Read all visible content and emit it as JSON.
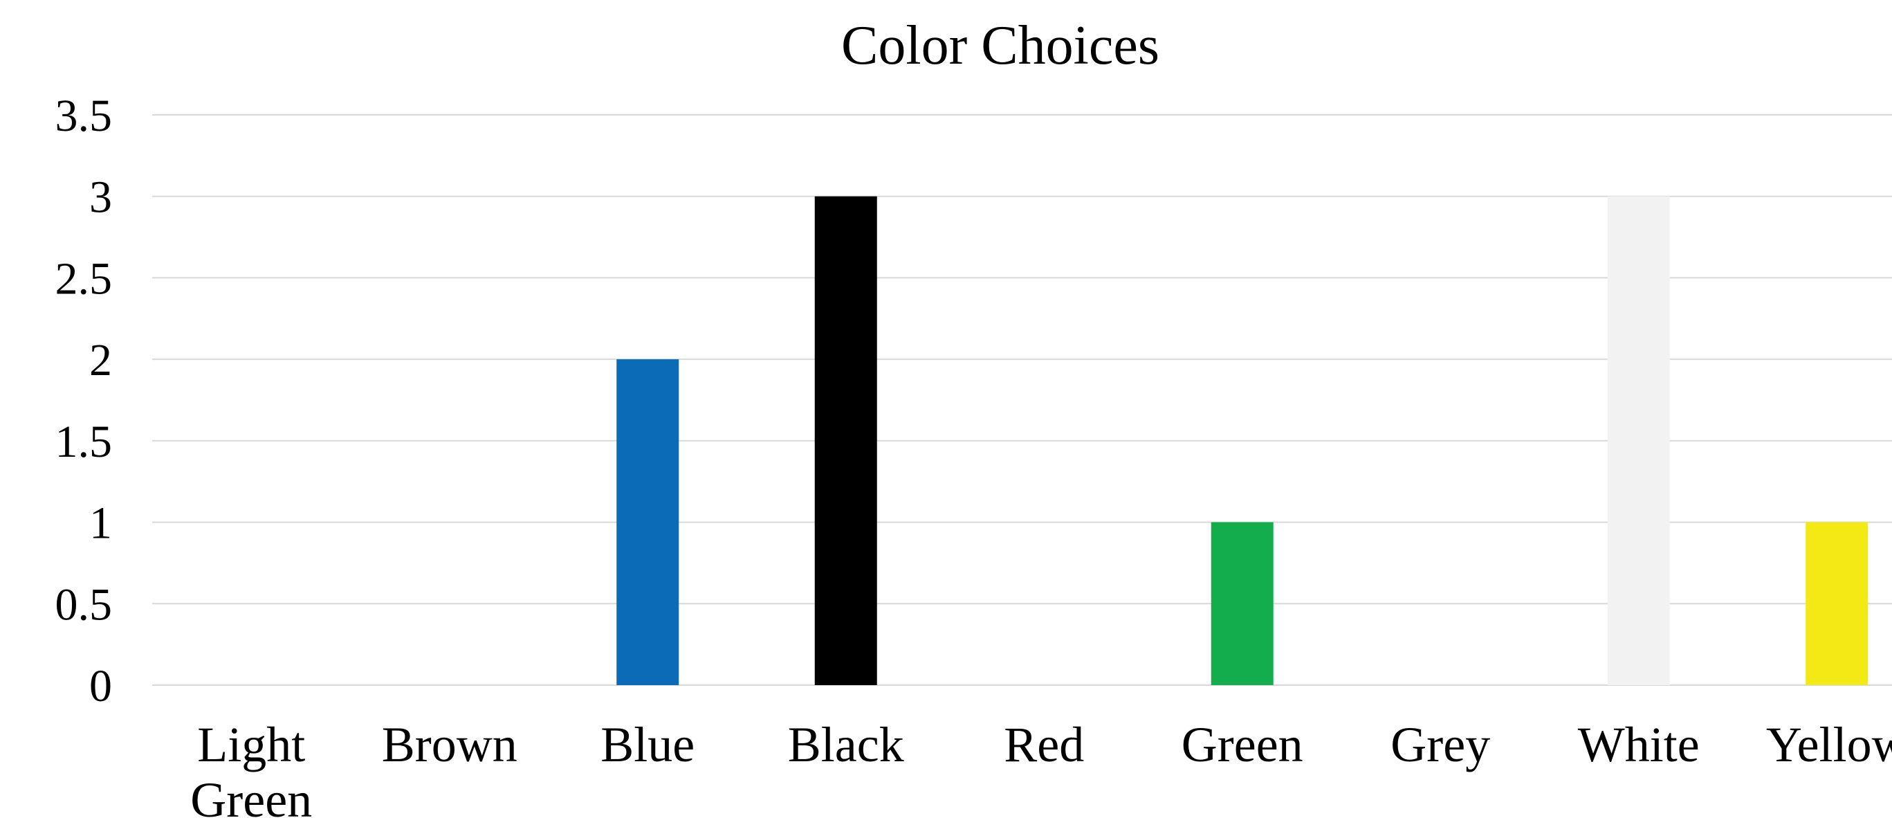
{
  "chart_data": {
    "type": "bar",
    "title": "Color Choices",
    "xlabel": "",
    "ylabel": "",
    "ylim": [
      0,
      3.5
    ],
    "yticks": [
      0,
      0.5,
      1,
      1.5,
      2,
      2.5,
      3,
      3.5
    ],
    "grid": true,
    "legend": "none",
    "categories": [
      {
        "label": [
          "Light",
          "Green"
        ],
        "value": 0,
        "color": "#92d050"
      },
      {
        "label": [
          "Brown"
        ],
        "value": 0,
        "color": "#8b5a2b"
      },
      {
        "label": [
          "Blue"
        ],
        "value": 2,
        "color": "#0b6bb6"
      },
      {
        "label": [
          "Black"
        ],
        "value": 3,
        "color": "#000000"
      },
      {
        "label": [
          "Red"
        ],
        "value": 0,
        "color": "#ff0000"
      },
      {
        "label": [
          "Green"
        ],
        "value": 1,
        "color": "#13ad4b"
      },
      {
        "label": [
          "Grey"
        ],
        "value": 0,
        "color": "#808080"
      },
      {
        "label": [
          "White"
        ],
        "value": 3,
        "color": "#f2f2f2"
      },
      {
        "label": [
          "Yellow"
        ],
        "value": 1,
        "color": "#f3e914"
      }
    ]
  }
}
